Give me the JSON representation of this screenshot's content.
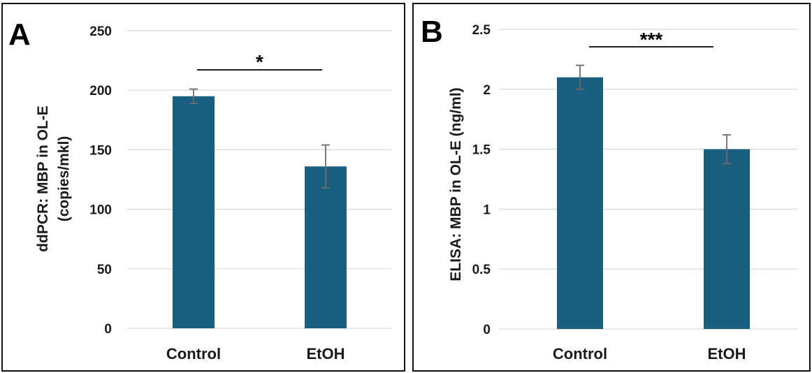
{
  "bar_color": "#1a5f7f",
  "chart_data": [
    {
      "type": "bar",
      "panel_label": "A",
      "categories": [
        "Control",
        "EtOH"
      ],
      "values": [
        195,
        136
      ],
      "errors": [
        6,
        18
      ],
      "ylabel_lines": [
        "ddPCR: MBP in OL-E",
        "(copies/mkl)"
      ],
      "xlabel": "",
      "ylim": [
        0,
        250
      ],
      "yticks": [
        "0",
        "50",
        "100",
        "150",
        "200",
        "250"
      ],
      "significance": "*",
      "grid": true
    },
    {
      "type": "bar",
      "panel_label": "B",
      "categories": [
        "Control",
        "EtOH"
      ],
      "values": [
        2.1,
        1.5
      ],
      "errors": [
        0.1,
        0.12
      ],
      "ylabel_lines": [
        "ELISA: MBP in OL-E (ng/ml)"
      ],
      "xlabel": "",
      "ylim": [
        0,
        2.5
      ],
      "yticks": [
        "0",
        "0.5",
        "1",
        "1.5",
        "2",
        "2.5"
      ],
      "significance": "***",
      "grid": true
    }
  ]
}
